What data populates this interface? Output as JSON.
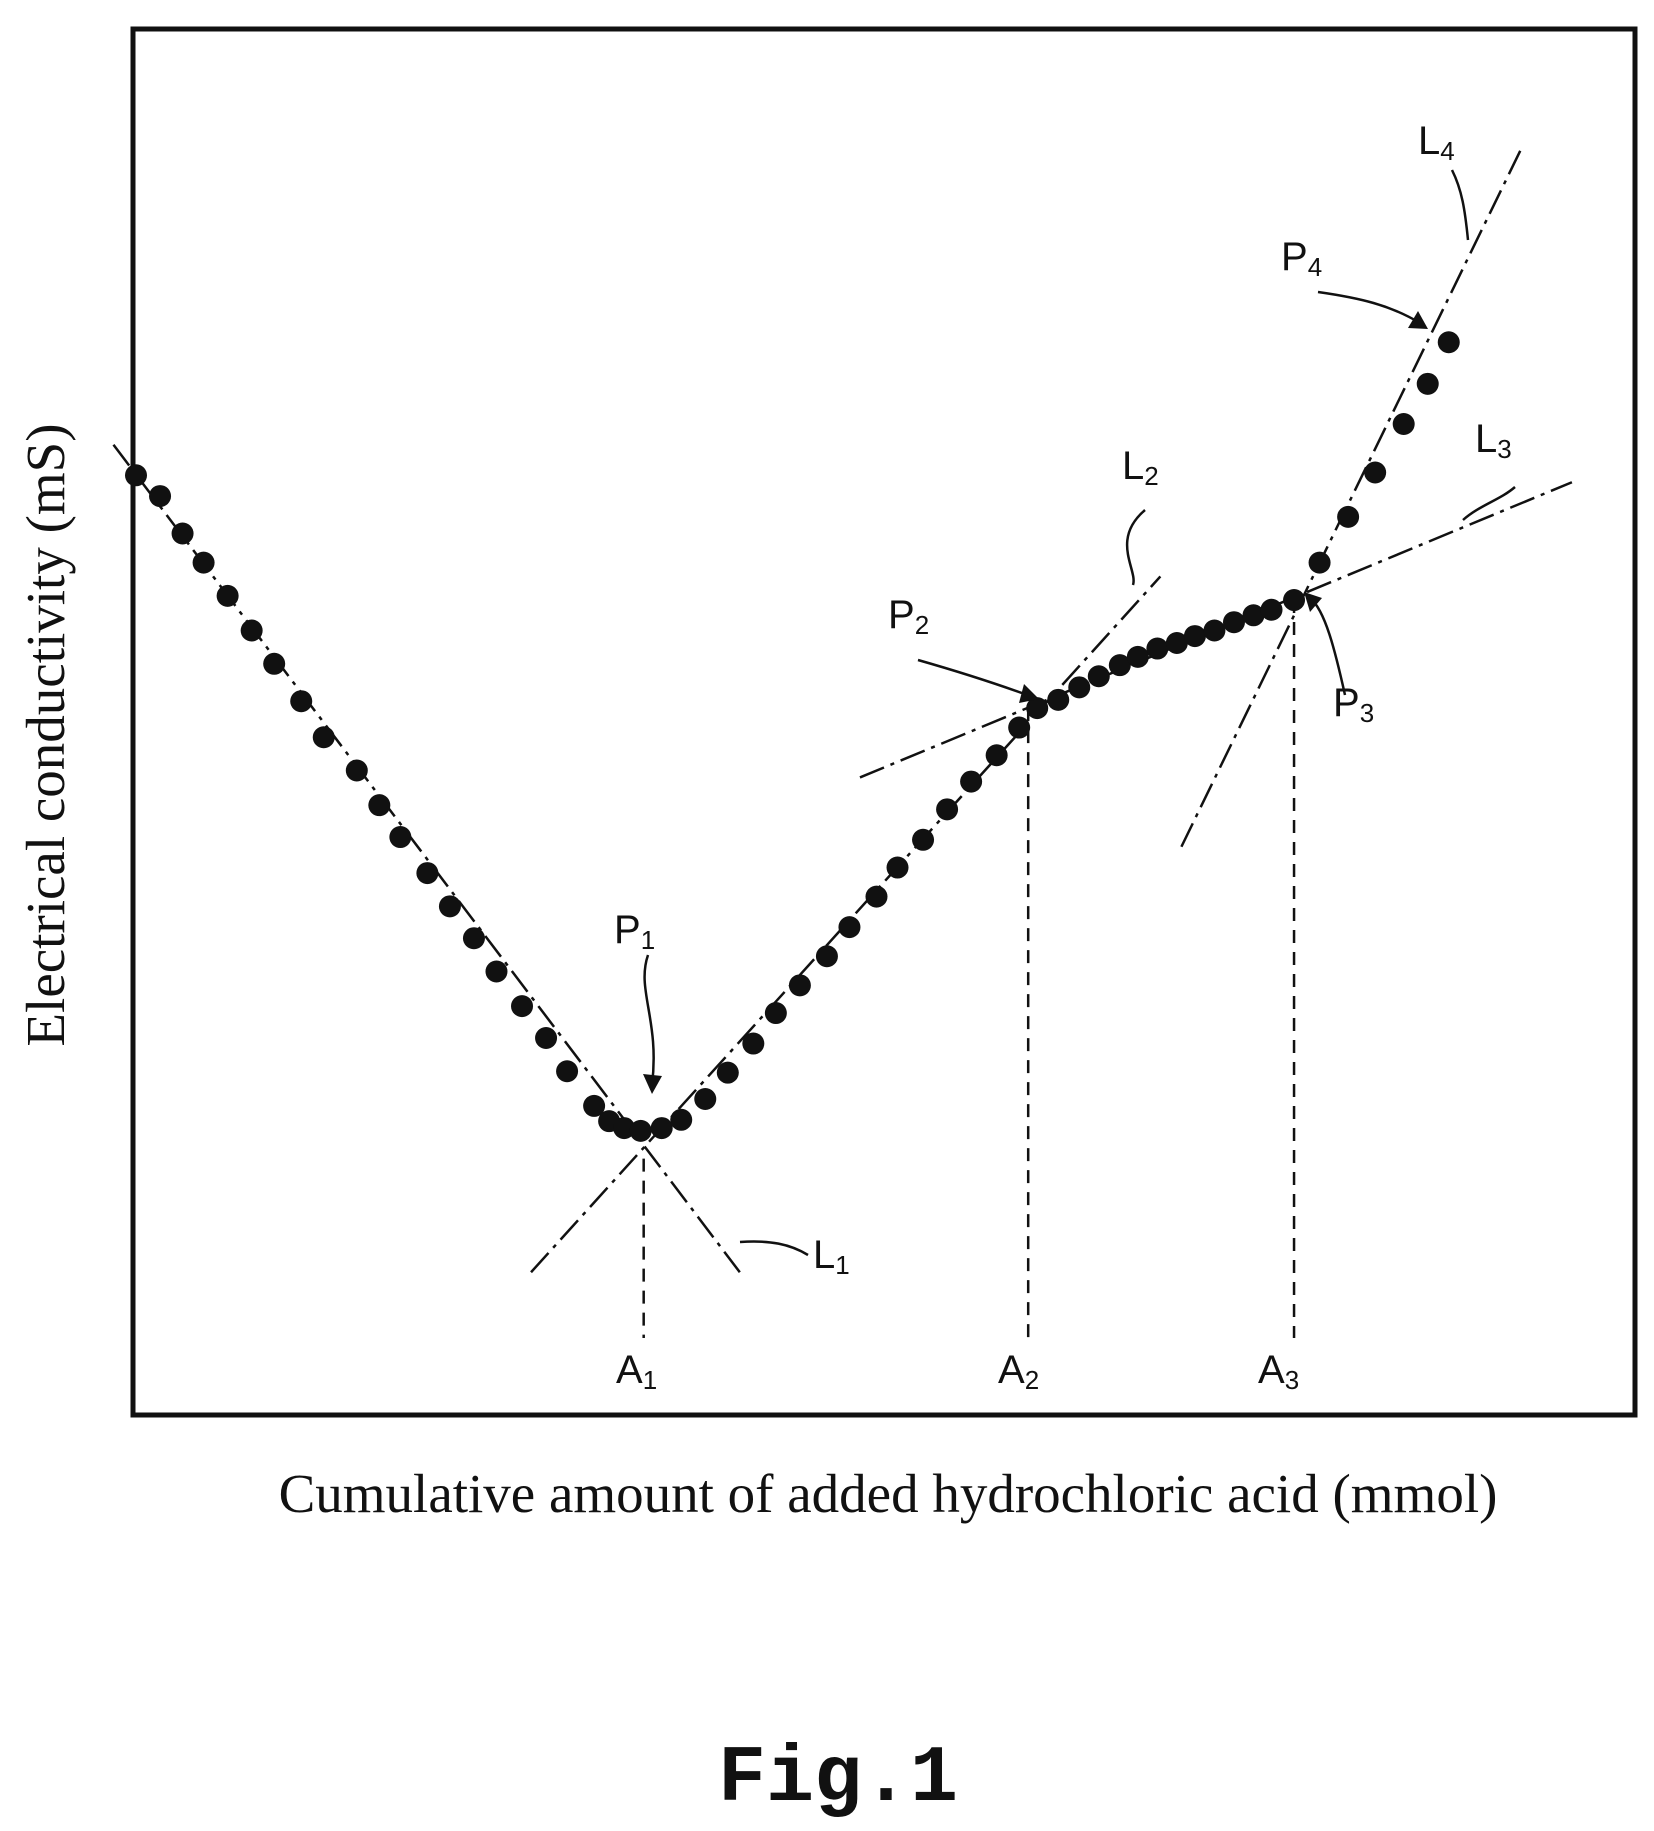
{
  "chart_data": {
    "type": "scatter",
    "title": "",
    "xlabel": "Cumulative amount of added hydrochloric acid (mmol)",
    "ylabel": "Electrical conductivity (mS)",
    "xlim": [
      0,
      100
    ],
    "ylim": [
      0,
      100
    ],
    "grid": false,
    "legend": "none",
    "x_tick_labels": [
      {
        "main": "A",
        "sub": "1",
        "x": 34.0
      },
      {
        "main": "A",
        "sub": "2",
        "x": 59.6
      },
      {
        "main": "A",
        "sub": "3",
        "x": 77.3
      }
    ],
    "series": [
      {
        "points": [
          {
            "x": 0.2,
            "y": 67.8
          },
          {
            "x": 1.8,
            "y": 66.3
          },
          {
            "x": 3.3,
            "y": 63.6
          },
          {
            "x": 4.7,
            "y": 61.5
          },
          {
            "x": 6.3,
            "y": 59.1
          },
          {
            "x": 7.9,
            "y": 56.6
          },
          {
            "x": 9.4,
            "y": 54.2
          },
          {
            "x": 11.2,
            "y": 51.5
          },
          {
            "x": 12.7,
            "y": 48.9
          },
          {
            "x": 14.9,
            "y": 46.5
          },
          {
            "x": 16.4,
            "y": 44.0
          },
          {
            "x": 17.8,
            "y": 41.7
          },
          {
            "x": 19.6,
            "y": 39.1
          },
          {
            "x": 21.1,
            "y": 36.7
          },
          {
            "x": 22.7,
            "y": 34.4
          },
          {
            "x": 24.2,
            "y": 32.0
          },
          {
            "x": 25.9,
            "y": 29.5
          },
          {
            "x": 27.5,
            "y": 27.2
          },
          {
            "x": 28.9,
            "y": 24.8
          },
          {
            "x": 30.7,
            "y": 22.3
          },
          {
            "x": 31.7,
            "y": 21.2
          },
          {
            "x": 32.7,
            "y": 20.7
          },
          {
            "x": 33.8,
            "y": 20.5
          },
          {
            "x": 35.2,
            "y": 20.7
          },
          {
            "x": 36.5,
            "y": 21.3
          },
          {
            "x": 38.1,
            "y": 22.8
          },
          {
            "x": 39.6,
            "y": 24.7
          },
          {
            "x": 41.3,
            "y": 26.8
          },
          {
            "x": 42.8,
            "y": 29.0
          },
          {
            "x": 44.4,
            "y": 31.0
          },
          {
            "x": 46.2,
            "y": 33.1
          },
          {
            "x": 47.7,
            "y": 35.2
          },
          {
            "x": 49.5,
            "y": 37.4
          },
          {
            "x": 50.9,
            "y": 39.5
          },
          {
            "x": 52.6,
            "y": 41.5
          },
          {
            "x": 54.2,
            "y": 43.7
          },
          {
            "x": 55.8,
            "y": 45.7
          },
          {
            "x": 57.5,
            "y": 47.6
          },
          {
            "x": 59.0,
            "y": 49.6
          },
          {
            "x": 60.2,
            "y": 51.0
          },
          {
            "x": 61.6,
            "y": 51.6
          },
          {
            "x": 63.0,
            "y": 52.5
          },
          {
            "x": 64.3,
            "y": 53.3
          },
          {
            "x": 65.7,
            "y": 54.1
          },
          {
            "x": 66.9,
            "y": 54.7
          },
          {
            "x": 68.2,
            "y": 55.3
          },
          {
            "x": 69.5,
            "y": 55.7
          },
          {
            "x": 70.7,
            "y": 56.2
          },
          {
            "x": 72.0,
            "y": 56.6
          },
          {
            "x": 73.3,
            "y": 57.2
          },
          {
            "x": 74.6,
            "y": 57.7
          },
          {
            "x": 75.8,
            "y": 58.1
          },
          {
            "x": 77.3,
            "y": 58.8
          },
          {
            "x": 79.0,
            "y": 61.5
          },
          {
            "x": 80.9,
            "y": 64.8
          },
          {
            "x": 82.7,
            "y": 68.0
          },
          {
            "x": 84.6,
            "y": 71.5
          },
          {
            "x": 86.2,
            "y": 74.4
          },
          {
            "x": 87.6,
            "y": 77.4
          }
        ]
      }
    ],
    "fitted_lines": [
      {
        "label": {
          "main": "L",
          "sub": "1"
        },
        "segments": [
          [
            -1.3,
            70.0,
            40.4,
            10.3
          ]
        ]
      },
      {
        "label": {
          "main": "L",
          "sub": "1"
        },
        "segments": [
          [
            26.5,
            10.3,
            68.4,
            60.5
          ]
        ]
      },
      {
        "label": {
          "main": "L",
          "sub": "2"
        },
        "segments": [
          [
            48.4,
            46.0,
            95.8,
            67.3
          ]
        ]
      },
      {
        "label": {
          "main": "L",
          "sub": "3"
        },
        "segments": [
          [
            69.8,
            41.0,
            92.4,
            91.3
          ]
        ]
      }
    ],
    "reference_lines": [
      {
        "x": 34.0,
        "y": 18.5
      },
      {
        "x": 59.6,
        "y": 51.0
      },
      {
        "x": 77.3,
        "y": 58.8
      }
    ],
    "annotations": [
      {
        "main": "P",
        "sub": "1",
        "x": 34.0,
        "y": 20.5
      },
      {
        "main": "P",
        "sub": "2",
        "x": 59.6,
        "y": 51.0
      },
      {
        "main": "P",
        "sub": "3",
        "x": 77.3,
        "y": 58.8
      },
      {
        "main": "P",
        "sub": "4",
        "x": 87.6,
        "y": 77.4
      },
      {
        "main": "L",
        "sub": "1"
      },
      {
        "main": "L",
        "sub": "2"
      },
      {
        "main": "L",
        "sub": "3"
      },
      {
        "main": "L",
        "sub": "4"
      }
    ]
  },
  "figure_caption": "Fig.1"
}
